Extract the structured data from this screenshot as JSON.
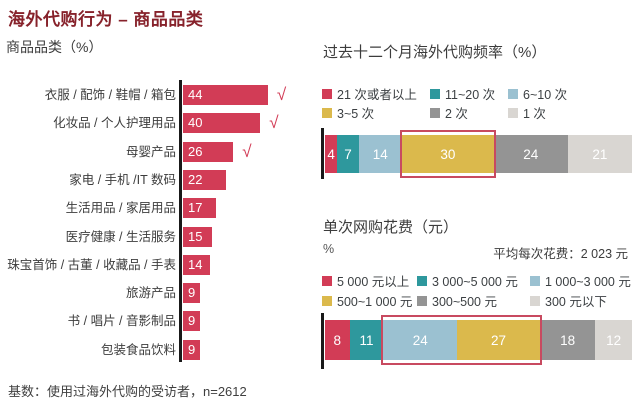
{
  "page": {
    "title": "海外代购行为 – 商品品类",
    "footer": "基数：使用过海外代购的受访者，n=2612"
  },
  "palette": {
    "title_red": "#87222B",
    "crimson": "#D23C56",
    "teal": "#2E989D",
    "light_blue": "#9BC1D1",
    "gold": "#DBB94C",
    "gray": "#949494",
    "light_gray": "#D9D6D2",
    "highlight_box_red": "#C84A60",
    "text_dark": "#3C3C3C"
  },
  "chart_data": [
    {
      "id": "product-categories",
      "type": "bar",
      "orientation": "horizontal",
      "title": "商品品类（%）",
      "categories": [
        "衣服 / 配饰 / 鞋帽 / 箱包",
        "化妆品 / 个人护理用品",
        "母婴产品",
        "家电 / 手机 /IT 数码",
        "生活用品 / 家居用品",
        "医疗健康 / 生活服务",
        "珠宝首饰 / 古董 / 收藏品 / 手表",
        "旅游产品",
        "书 / 唱片 / 音影制品",
        "包装食品饮料"
      ],
      "values": [
        44,
        40,
        26,
        22,
        17,
        15,
        14,
        9,
        9,
        9
      ],
      "bar_color": "#D23C56",
      "checked_count": 3,
      "check_glyph": "√",
      "xlim": [
        0,
        100
      ]
    },
    {
      "id": "purchase-frequency",
      "type": "stacked-bar",
      "title": "过去十二个月海外代购频率（%）",
      "segments": [
        {
          "label": "21 次或者以上",
          "value": 4,
          "color": "#D23C56"
        },
        {
          "label": "11~20 次",
          "value": 7,
          "color": "#2E989D"
        },
        {
          "label": "6~10 次",
          "value": 14,
          "color": "#9BC1D1"
        },
        {
          "label": "3~5 次",
          "value": 30,
          "color": "#DBB94C"
        },
        {
          "label": "2 次",
          "value": 24,
          "color": "#949494"
        },
        {
          "label": "1 次",
          "value": 21,
          "color": "#D9D6D2"
        }
      ],
      "highlight": {
        "from": 3,
        "to": 3
      },
      "xlim": [
        0,
        100
      ]
    },
    {
      "id": "spend-per-purchase",
      "type": "stacked-bar",
      "title": "单次网购花费（元）",
      "unit_label": "%",
      "average_note": "平均每次花费：2 023 元",
      "segments": [
        {
          "label": "5 000 元以上",
          "value": 8,
          "color": "#D23C56"
        },
        {
          "label": "3 000~5 000 元",
          "value": 11,
          "color": "#2E989D"
        },
        {
          "label": "1 000~3 000 元",
          "value": 24,
          "color": "#9BC1D1"
        },
        {
          "label": "500~1 000 元",
          "value": 27,
          "color": "#DBB94C"
        },
        {
          "label": "300~500 元",
          "value": 18,
          "color": "#949494"
        },
        {
          "label": "300 元以下",
          "value": 12,
          "color": "#D9D6D2"
        }
      ],
      "highlight": {
        "from": 2,
        "to": 3
      },
      "xlim": [
        0,
        100
      ]
    }
  ]
}
